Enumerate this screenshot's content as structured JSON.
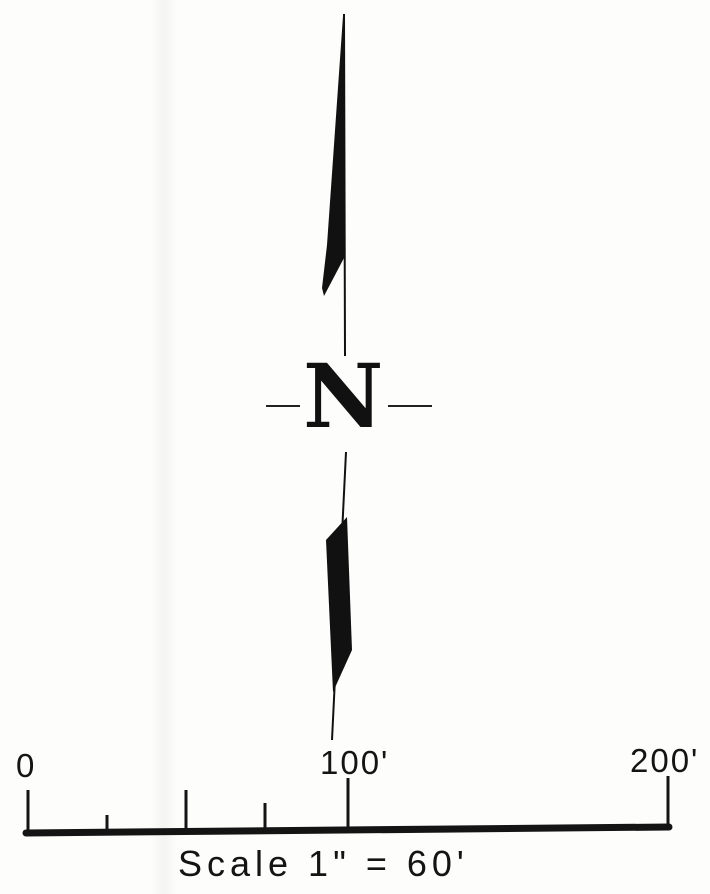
{
  "north_arrow": {
    "letter": "N",
    "icon": "north-arrow-icon",
    "ink_color": "#111111"
  },
  "scale_bar": {
    "tick_labels": [
      "0",
      "100'",
      "200'"
    ],
    "caption": "Scale 1\" = 60'",
    "ink_color": "#141414"
  }
}
